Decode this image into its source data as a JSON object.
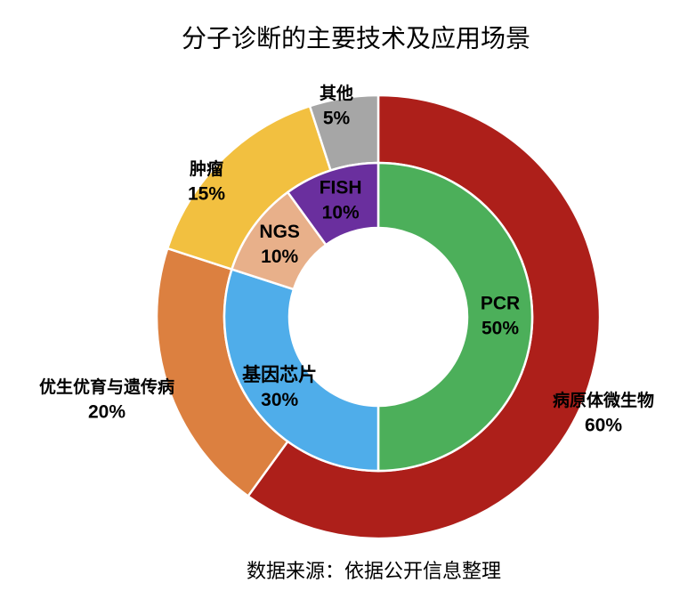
{
  "chart_data": {
    "type": "donut",
    "title": "分子诊断的主要技术及应用场景",
    "note": "数据来源：依据公开信息整理",
    "rings": [
      {
        "categories": [
          "病原体微生物",
          "优生优育与遗传病",
          "肿瘤",
          "其他"
        ],
        "values": [
          60,
          20,
          15,
          5
        ],
        "value_labels": [
          "60%",
          "20%",
          "15%",
          "5%"
        ],
        "colors": [
          "#ad1f1a",
          "#dc8040",
          "#f2c040",
          "#a6a6a6"
        ]
      },
      {
        "categories": [
          "PCR",
          "基因芯片",
          "NGS",
          "FISH"
        ],
        "values": [
          50,
          30,
          10,
          10
        ],
        "value_labels": [
          "50%",
          "30%",
          "10%",
          "10%"
        ],
        "colors": [
          "#4caf5a",
          "#4fadea",
          "#e8b08a",
          "#6a2f9e"
        ]
      }
    ]
  }
}
